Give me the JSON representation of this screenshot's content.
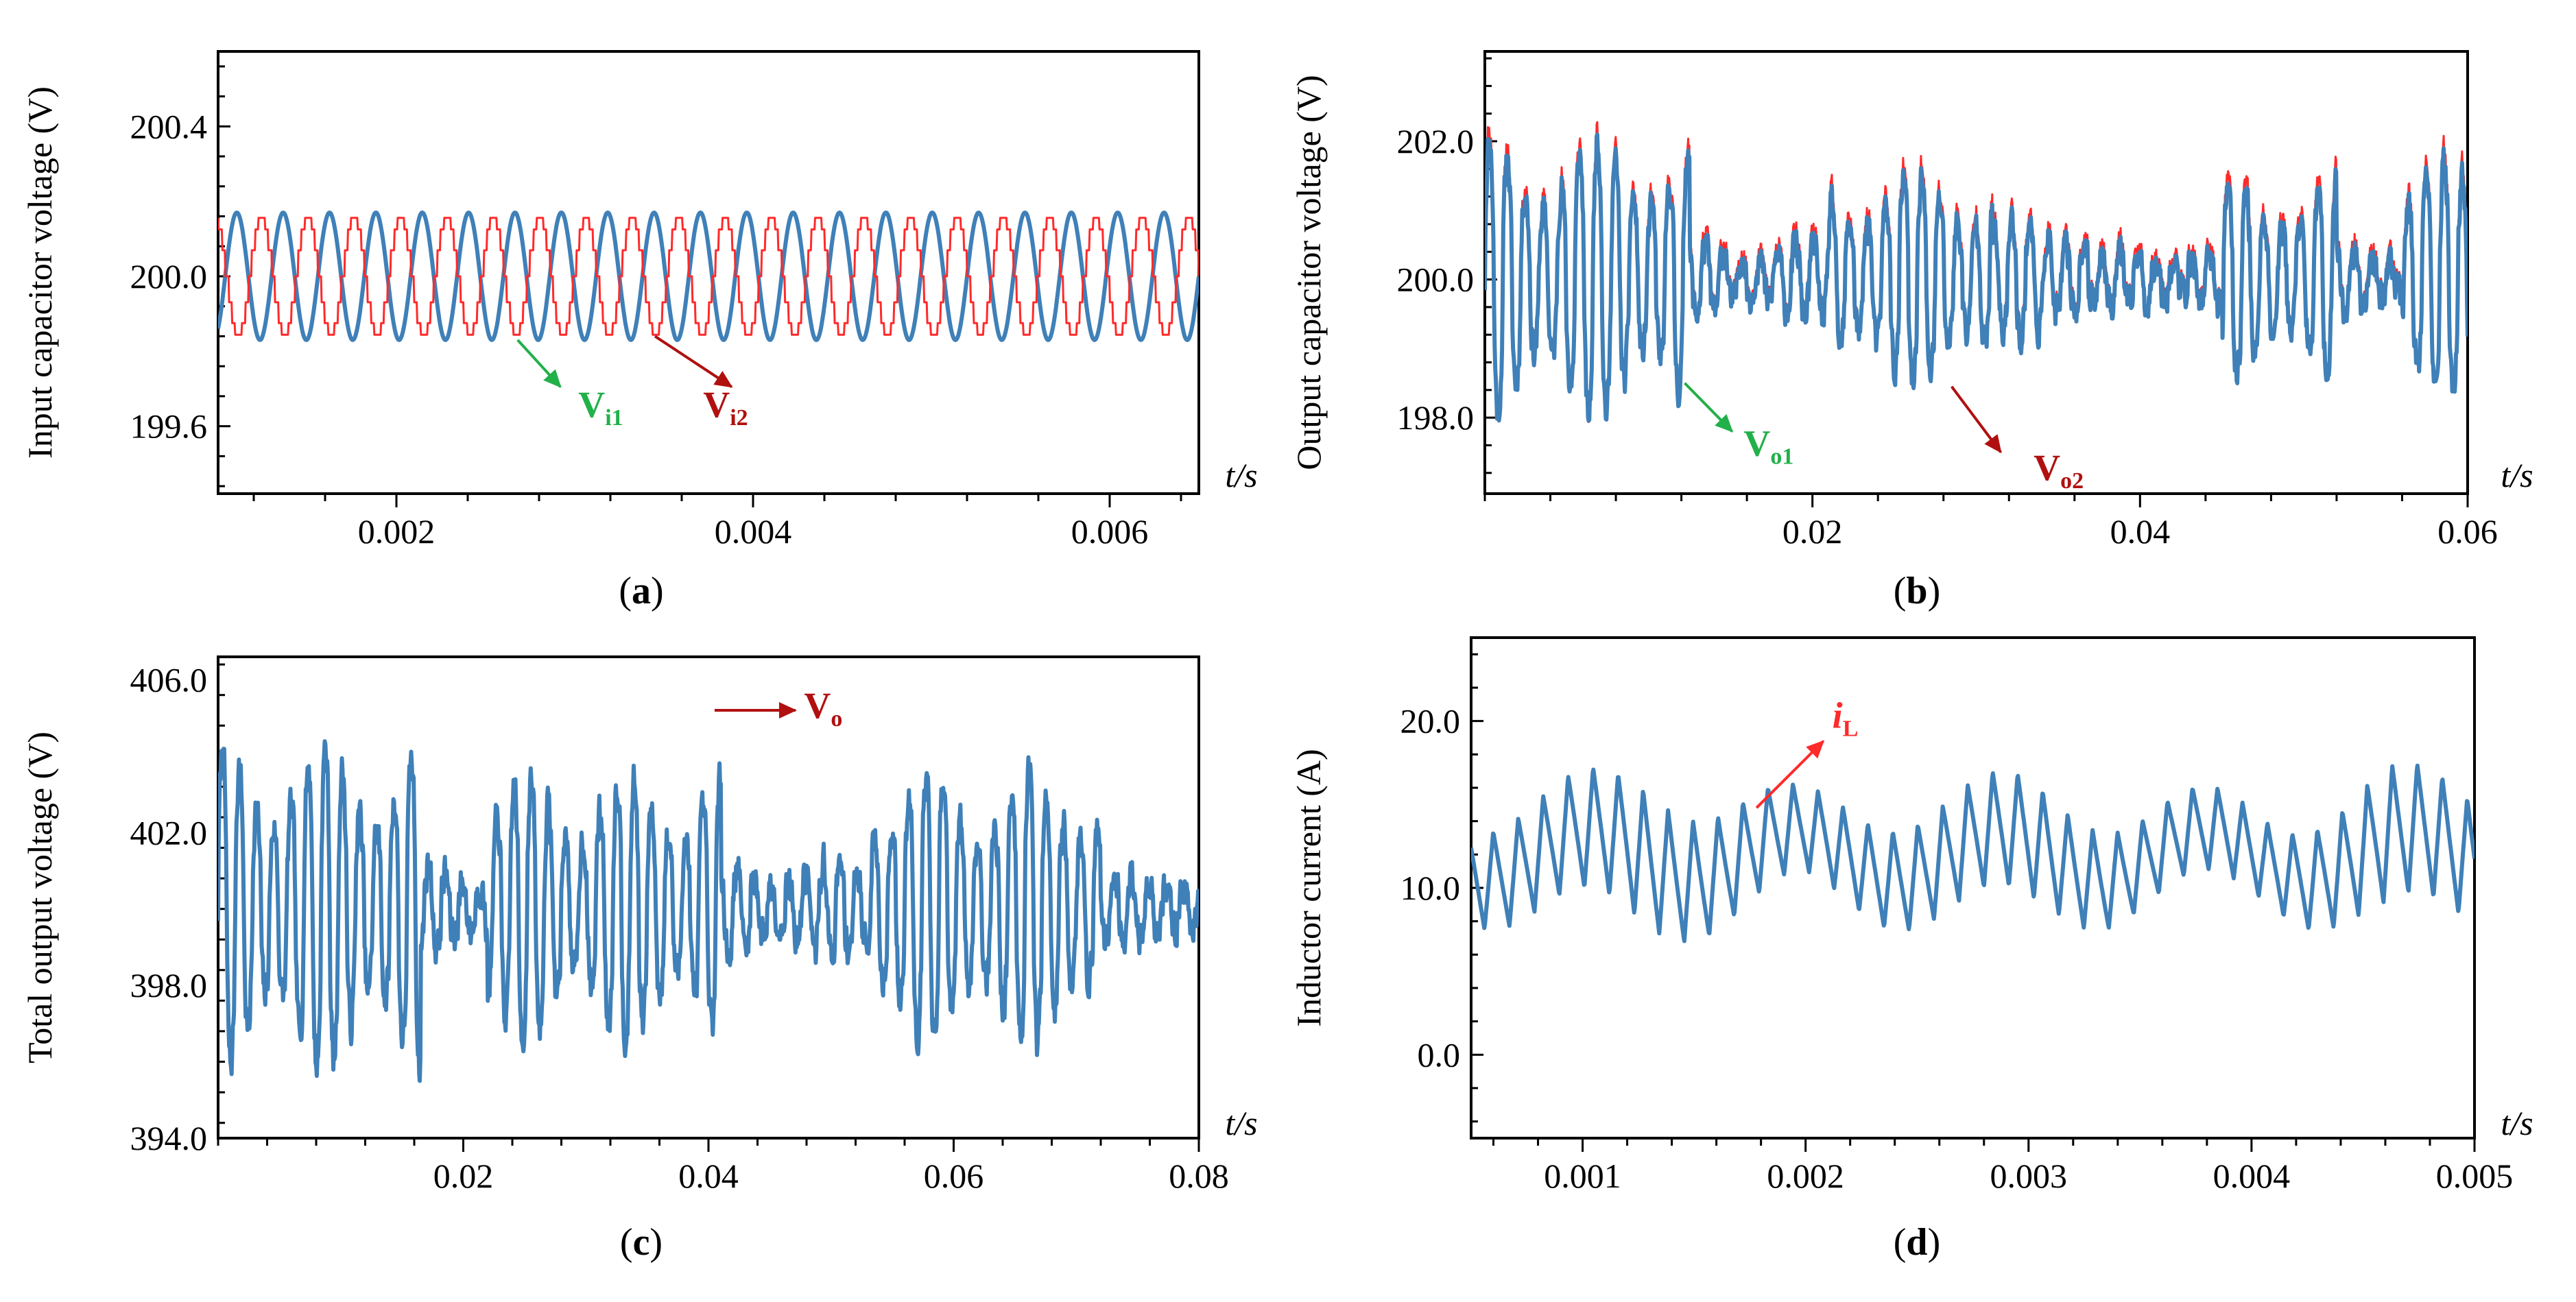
{
  "colors": {
    "blue": "#3f80b8",
    "red": "#ff2a2a",
    "green": "#22b04a",
    "darkred": "#b01010"
  },
  "chart_data": [
    {
      "id": "a",
      "type": "line",
      "caption": {
        "open": "(",
        "letter": "a",
        "close": ")"
      },
      "ylabel": "Input capacitor voltage (V)",
      "xlabel": "t/s",
      "xlim": [
        0.001,
        0.0065
      ],
      "ylim": [
        199.42,
        200.6
      ],
      "xticks": [
        0.002,
        0.004,
        0.006
      ],
      "xtick_labels": [
        "0.002",
        "0.004",
        "0.006"
      ],
      "yticks": [
        199.6,
        200.0,
        200.4
      ],
      "ytick_labels": [
        "199.6",
        "200.0",
        "200.4"
      ],
      "series": [
        {
          "name": "Vi1",
          "color": "#3f80b8",
          "kind": "sine",
          "mean": 200.0,
          "amp": 0.17,
          "period": 0.00026,
          "phase": 0.0
        },
        {
          "name": "Vi2",
          "color": "#ff2a2a",
          "kind": "sine_stepped",
          "mean": 200.0,
          "amp": 0.16,
          "period": 0.00026,
          "phase": 3.14159
        }
      ],
      "annotations": [
        {
          "main": "V",
          "sub": "i1",
          "color": "#22b04a",
          "x": 0.00302,
          "y": 199.625,
          "from": [
            0.00268,
            199.83
          ],
          "to": [
            0.00292,
            199.705
          ]
        },
        {
          "main": "V",
          "sub": "i2",
          "color": "#b01010",
          "x": 0.00372,
          "y": 199.625,
          "from": [
            0.00345,
            199.84
          ],
          "to": [
            0.00388,
            199.705
          ]
        }
      ]
    },
    {
      "id": "b",
      "type": "line",
      "caption": {
        "open": "(",
        "letter": "b",
        "close": ")"
      },
      "ylabel": "Output capacitor voltage (V)",
      "xlabel": "t/s",
      "xlim": [
        0.0,
        0.06
      ],
      "ylim": [
        196.9,
        203.3
      ],
      "xticks": [
        0.02,
        0.04,
        0.06
      ],
      "xtick_labels": [
        "0.02",
        "0.04",
        "0.06"
      ],
      "yticks": [
        198.0,
        200.0,
        202.0
      ],
      "ytick_labels": [
        "198.0",
        "200.0",
        "202.0"
      ],
      "series": [
        {
          "name": "Vo2",
          "color": "#ff2a2a",
          "kind": "burst",
          "seed": 11,
          "mean": 200.0,
          "period": 0.0011,
          "segments": [
            [
              0,
              0.0125,
              2.1
            ],
            [
              0.0125,
              0.021,
              0.55
            ],
            [
              0.021,
              0.031,
              1.6
            ],
            [
              0.031,
              0.037,
              0.9
            ],
            [
              0.037,
              0.045,
              0.45
            ],
            [
              0.045,
              0.052,
              1.5
            ],
            [
              0.052,
              0.056,
              0.5
            ],
            [
              0.056,
              0.06,
              1.8
            ]
          ],
          "noise": 0.3,
          "offset": 0.08
        },
        {
          "name": "Vo1",
          "color": "#3f80b8",
          "kind": "burst",
          "seed": 11,
          "mean": 200.0,
          "period": 0.0011,
          "segments": [
            [
              0,
              0.0125,
              2.0
            ],
            [
              0.0125,
              0.021,
              0.5
            ],
            [
              0.021,
              0.031,
              1.5
            ],
            [
              0.031,
              0.037,
              0.85
            ],
            [
              0.037,
              0.045,
              0.4
            ],
            [
              0.045,
              0.052,
              1.4
            ],
            [
              0.052,
              0.056,
              0.45
            ],
            [
              0.056,
              0.06,
              1.7
            ]
          ],
          "noise": 0.3,
          "offset": 0.0
        }
      ],
      "annotations": [
        {
          "main": "V",
          "sub": "o1",
          "color": "#22b04a",
          "x": 0.0158,
          "y": 197.45,
          "from": [
            0.0122,
            198.5
          ],
          "to": [
            0.0151,
            197.8
          ]
        },
        {
          "main": "V",
          "sub": "o2",
          "color": "#b01010",
          "x": 0.0335,
          "y": 197.1,
          "from": [
            0.0285,
            198.45
          ],
          "to": [
            0.0315,
            197.5
          ]
        }
      ]
    },
    {
      "id": "c",
      "type": "line",
      "caption": {
        "open": "(",
        "letter": "c",
        "close": ")"
      },
      "ylabel": "Total output voltage (V)",
      "xlabel": "t/s",
      "xlim": [
        0.0,
        0.08
      ],
      "ylim": [
        394.0,
        406.6
      ],
      "xticks": [
        0.02,
        0.04,
        0.06,
        0.08
      ],
      "xtick_labels": [
        "0.02",
        "0.04",
        "0.06",
        "0.08"
      ],
      "yticks": [
        394.0,
        398.0,
        402.0,
        406.0
      ],
      "ytick_labels": [
        "394.0",
        "398.0",
        "402.0",
        "406.0"
      ],
      "series": [
        {
          "name": "Vo",
          "color": "#3f80b8",
          "kind": "burst",
          "seed": 7,
          "mean": 400.0,
          "period": 0.0014,
          "segments": [
            [
              0,
              0.0165,
              4.2
            ],
            [
              0.0165,
              0.022,
              1.1
            ],
            [
              0.022,
              0.041,
              3.4
            ],
            [
              0.041,
              0.053,
              1.2
            ],
            [
              0.053,
              0.072,
              3.5
            ],
            [
              0.072,
              0.08,
              0.9
            ]
          ],
          "noise": 0.6,
          "offset": 0.0
        }
      ],
      "annotations": [
        {
          "main": "V",
          "sub": "o",
          "color": "#b01010",
          "x": 0.0478,
          "y": 405.0,
          "from": [
            0.0405,
            405.2
          ],
          "to": [
            0.0471,
            405.2
          ]
        }
      ]
    },
    {
      "id": "d",
      "type": "line",
      "caption": {
        "open": "(",
        "letter": "d",
        "close": ")"
      },
      "ylabel": "Inductor current (A)",
      "xlabel": "t/s",
      "xlim": [
        0.0005,
        0.005
      ],
      "ylim": [
        -5.0,
        25.0
      ],
      "xticks": [
        0.001,
        0.002,
        0.003,
        0.004,
        0.005
      ],
      "xtick_labels": [
        "0.001",
        "0.002",
        "0.003",
        "0.004",
        "0.005"
      ],
      "yticks": [
        0.0,
        10.0,
        20.0
      ],
      "ytick_labels": [
        "0.0",
        "10.0",
        "20.0"
      ],
      "series": [
        {
          "name": "iL",
          "color": "#3f80b8",
          "kind": "tri",
          "seed": 5,
          "mean": 12.0,
          "period": 0.000112,
          "envelope": [
            [
              0.0005,
              2.8
            ],
            [
              0.0013,
              4.0
            ],
            [
              0.0018,
              3.0
            ],
            [
              0.002,
              2.5
            ],
            [
              0.0026,
              3.2
            ],
            [
              0.003,
              3.5
            ],
            [
              0.0035,
              2.6
            ],
            [
              0.0041,
              2.4
            ],
            [
              0.0046,
              4.0
            ],
            [
              0.005,
              3.6
            ]
          ]
        }
      ],
      "annotations": [
        {
          "main": "i",
          "sub": "L",
          "color": "#ff2a2a",
          "italic": true,
          "x": 0.00212,
          "y": 19.6,
          "from": [
            0.00178,
            14.8
          ],
          "to": [
            0.00208,
            18.8
          ]
        }
      ]
    }
  ]
}
